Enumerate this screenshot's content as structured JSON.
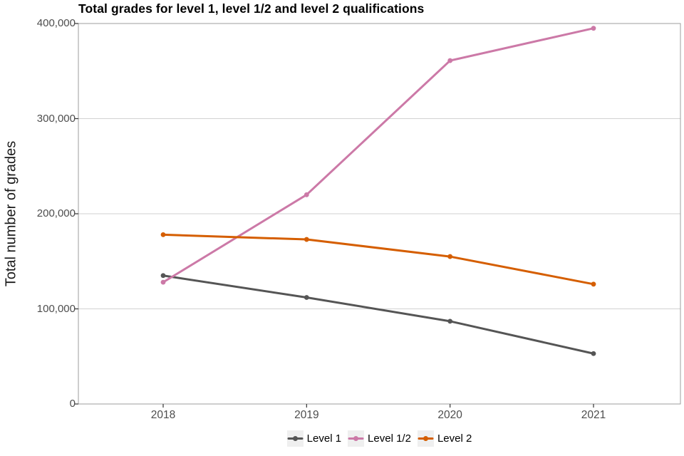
{
  "chart_data": {
    "type": "line",
    "title": "Total grades for level 1, level 1/2 and level 2 qualifications",
    "ylabel": "Total number of grades",
    "xlabel": "",
    "x": [
      "2018",
      "2019",
      "2020",
      "2021"
    ],
    "series": [
      {
        "name": "Level 1",
        "color": "#555555",
        "values": [
          135000,
          112000,
          87000,
          53000
        ]
      },
      {
        "name": "Level 1/2",
        "color": "#CC79A7",
        "values": [
          128000,
          220000,
          361000,
          395000
        ]
      },
      {
        "name": "Level 2",
        "color": "#D55E00",
        "values": [
          178000,
          173000,
          155000,
          126000
        ]
      }
    ],
    "ylim": [
      0,
      400000
    ],
    "yticks": [
      0,
      100000,
      200000,
      300000,
      400000
    ],
    "ytick_labels": [
      "0",
      "100,000",
      "200,000",
      "300,000",
      "400,000"
    ],
    "grid": "horizontal",
    "legend_position": "bottom",
    "colors": {
      "gridline": "#d2d2d2",
      "panel_border": "#9e9e9e",
      "tick_mark": "#333333",
      "tick_label": "#4d4d4d"
    }
  }
}
